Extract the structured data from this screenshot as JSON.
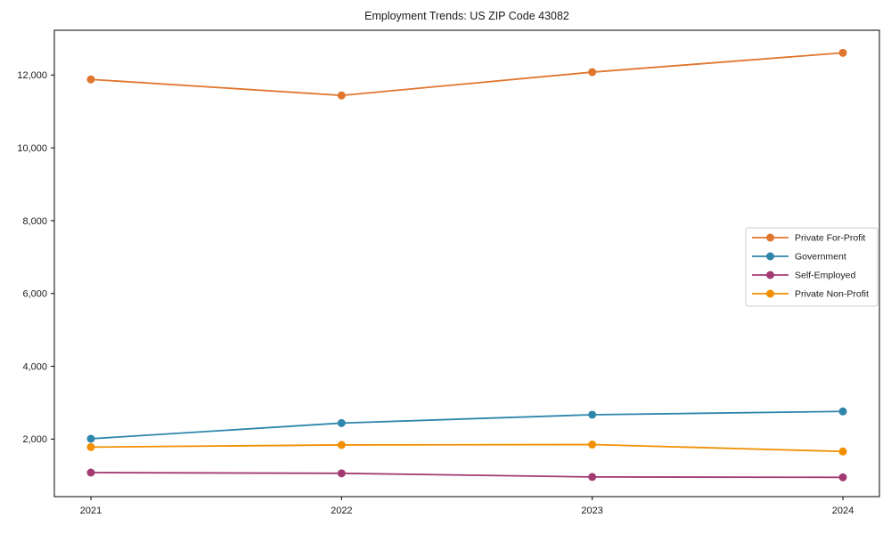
{
  "chart_data": {
    "type": "line",
    "title": "Employment Trends: US ZIP Code 43082",
    "categories": [
      "2021",
      "2022",
      "2023",
      "2024"
    ],
    "series": [
      {
        "name": "Private For-Profit",
        "color": "#E0752D",
        "values": [
          11880,
          11440,
          12080,
          12610
        ]
      },
      {
        "name": "Government",
        "color": "#2E86AB",
        "values": [
          2010,
          2440,
          2670,
          2760
        ]
      },
      {
        "name": "Self-Employed",
        "color": "#A23B72",
        "values": [
          1080,
          1060,
          960,
          950
        ]
      },
      {
        "name": "Private Non-Profit",
        "color": "#F18F01",
        "values": [
          1780,
          1840,
          1850,
          1660
        ]
      }
    ],
    "y_ticks": [
      2000,
      4000,
      6000,
      8000,
      10000,
      12000
    ],
    "y_tick_labels": [
      "2,000",
      "4,000",
      "6,000",
      "8,000",
      "10,000",
      "12,000"
    ],
    "ylim": [
      420,
      13230
    ],
    "xlabel": "",
    "ylabel": "",
    "grid": false,
    "legend_position": "right-middle",
    "axis_color": "#000000",
    "legend_border_color": "#cccccc"
  }
}
